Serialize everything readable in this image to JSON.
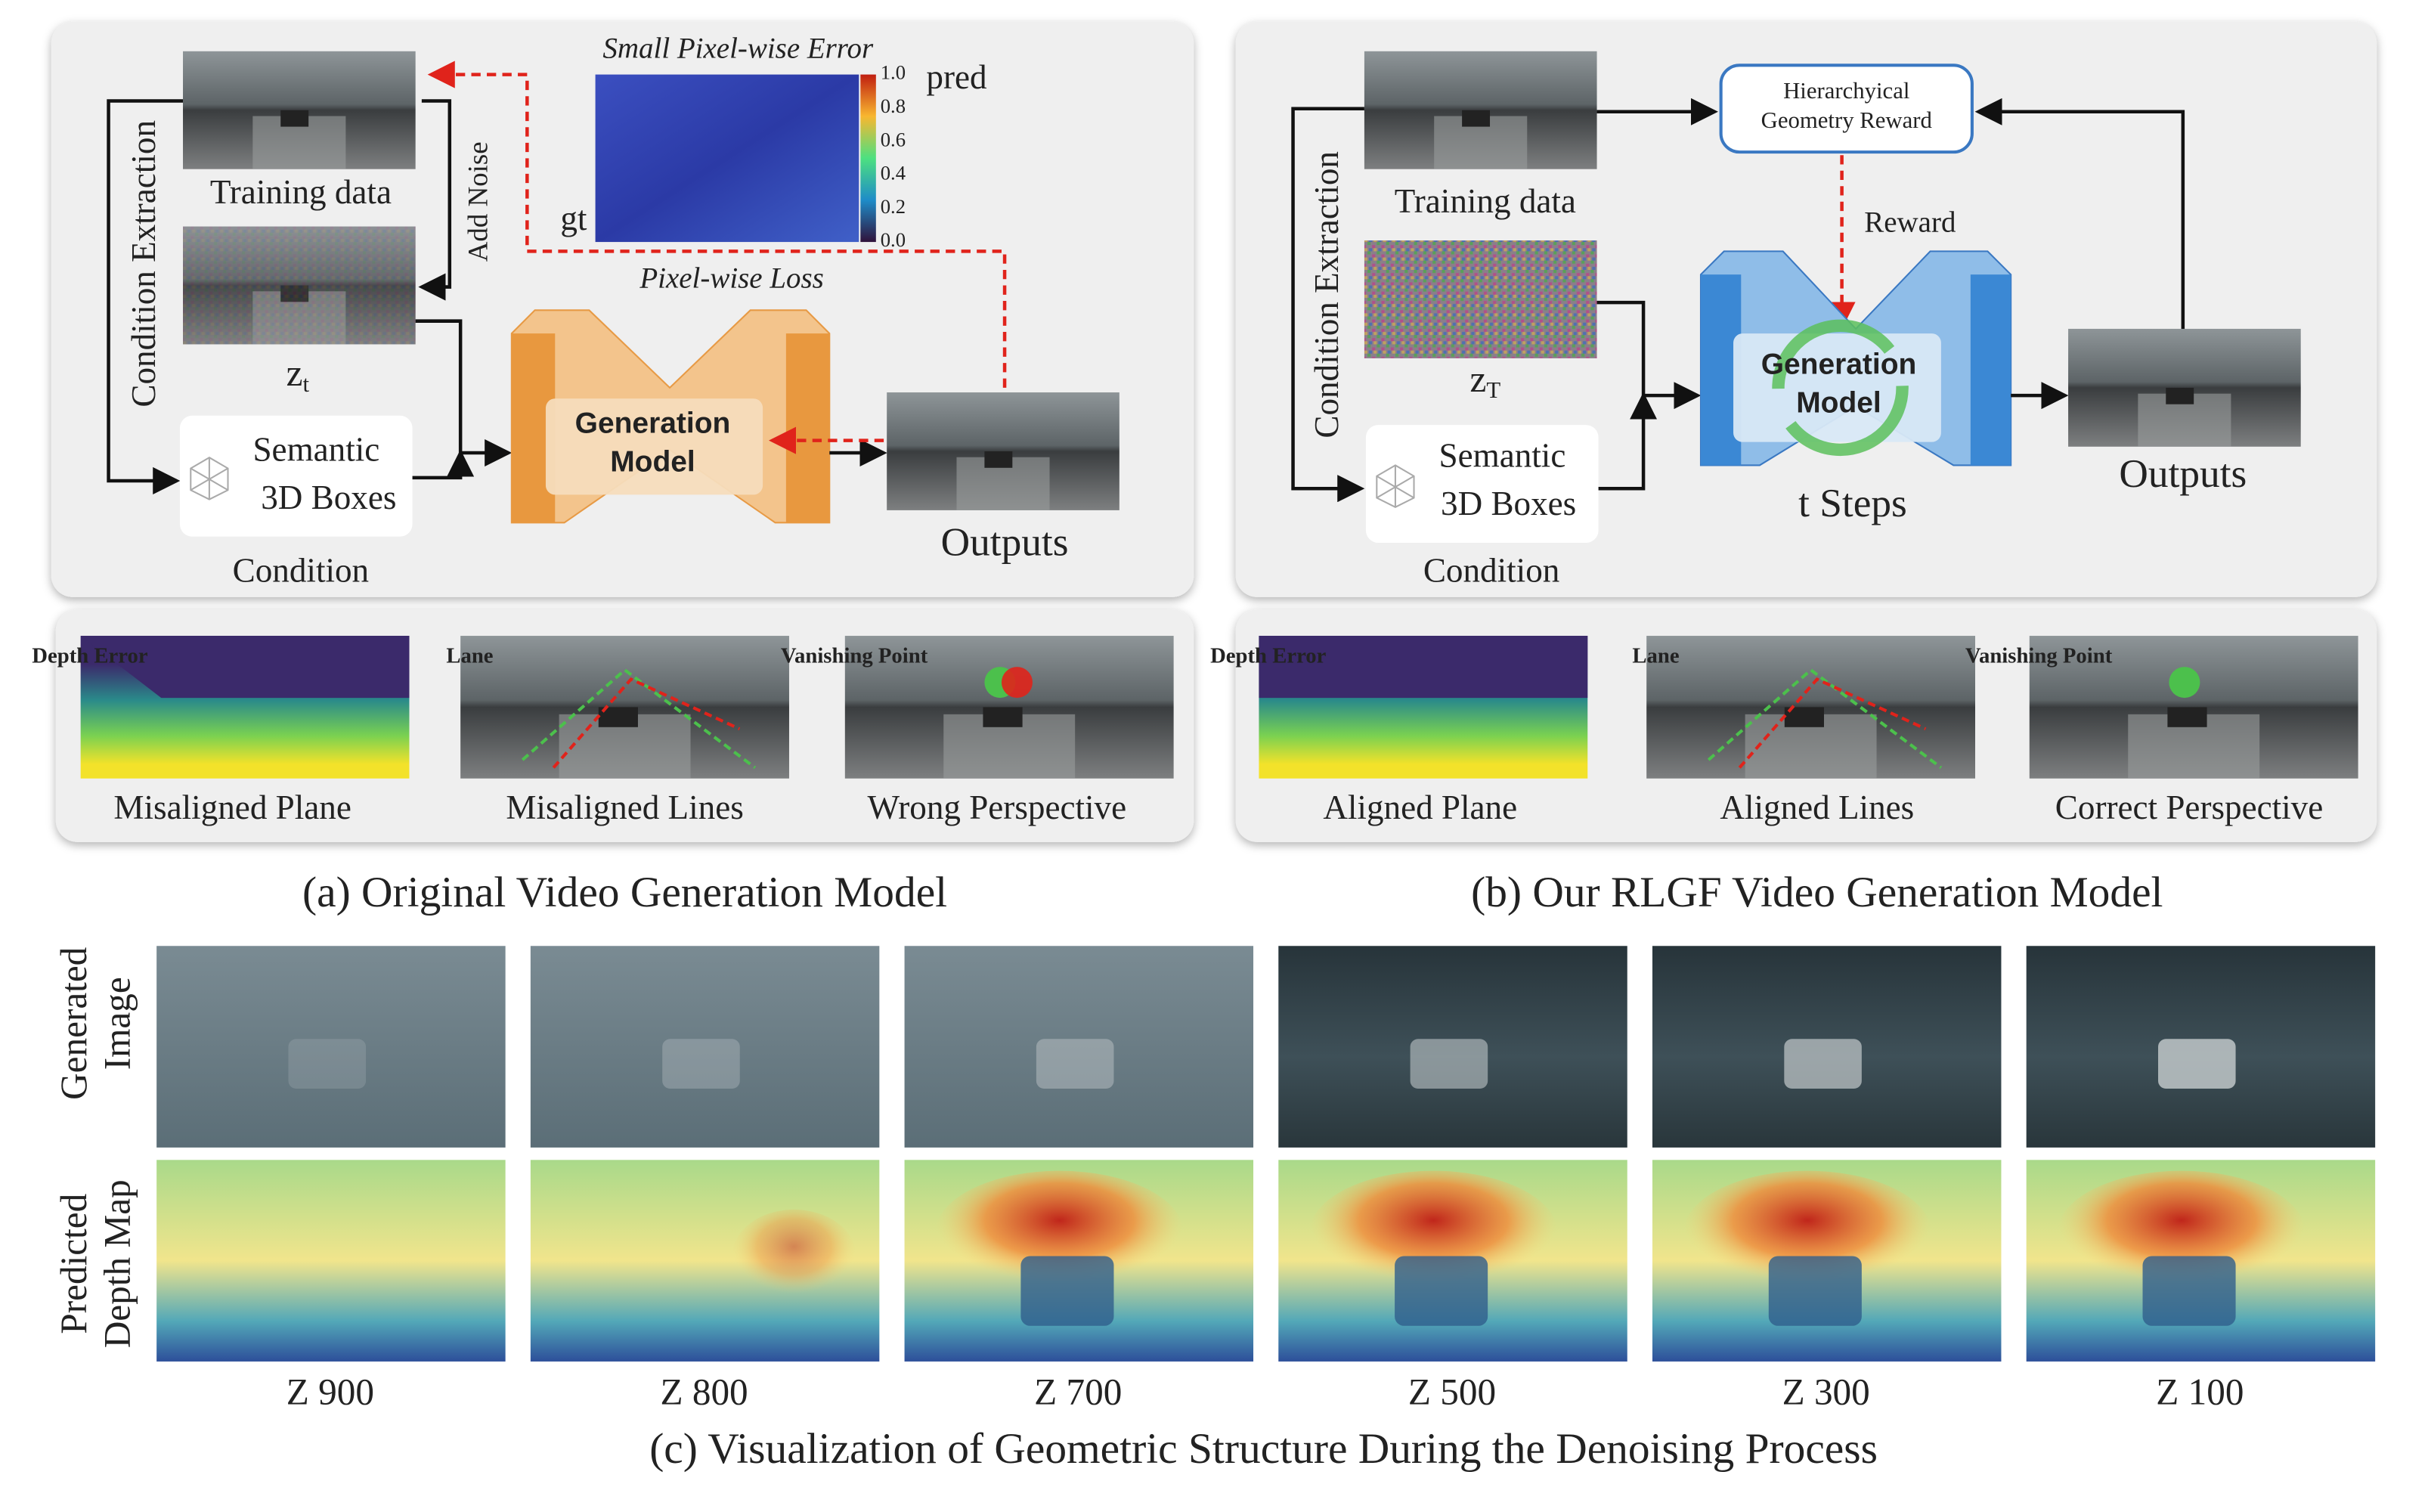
{
  "panel_a": {
    "pixel_error_title": "Small Pixel-wise Error",
    "pred_label": "pred",
    "gt_label": "gt",
    "colorbar_ticks": [
      "1.0",
      "0.8",
      "0.6",
      "0.4",
      "0.2",
      "0.0"
    ],
    "training_data": "Training data",
    "add_noise": "Add Noise",
    "condition_extraction": "Condition Extraction",
    "latent": {
      "symbol": "z",
      "subscript": "t"
    },
    "condition_box": [
      "Semantic",
      "3D Boxes"
    ],
    "condition": "Condition",
    "model": [
      "Generation",
      "Model"
    ],
    "pixel_loss": "Pixel-wise Loss",
    "outputs": "Outputs",
    "examples": [
      {
        "tag": "Depth Error",
        "caption": "Misaligned Plane"
      },
      {
        "tag": "Lane",
        "caption": "Misaligned Lines"
      },
      {
        "tag": "Vanishing Point",
        "caption": "Wrong Perspective"
      }
    ],
    "caption": "(a) Original Video Generation Model"
  },
  "panel_b": {
    "reward_box": [
      "Hierarchyical",
      "Geometry Reward"
    ],
    "reward": "Reward",
    "training_data": "Training data",
    "condition_extraction": "Condition Extraction",
    "latent": {
      "symbol": "z",
      "subscript": "T"
    },
    "condition_box": [
      "Semantic",
      "3D Boxes"
    ],
    "condition": "Condition",
    "model": [
      "Generation",
      "Model"
    ],
    "steps": "t Steps",
    "outputs": "Outputs",
    "examples": [
      {
        "tag": "Depth Error",
        "caption": "Aligned Plane"
      },
      {
        "tag": "Lane",
        "caption": "Aligned Lines"
      },
      {
        "tag": "Vanishing Point",
        "caption": "Correct Perspective"
      }
    ],
    "caption": "(b) Our RLGF Video Generation Model"
  },
  "panel_c": {
    "row_labels": [
      [
        "Generated",
        "Image"
      ],
      [
        "Predicted",
        "Depth Map"
      ]
    ],
    "steps": [
      "Z 900",
      "Z 800",
      "Z 700",
      "Z 500",
      "Z 300",
      "Z 100"
    ],
    "caption": "(c) Visualization of Geometric Structure During the Denoising Process"
  }
}
